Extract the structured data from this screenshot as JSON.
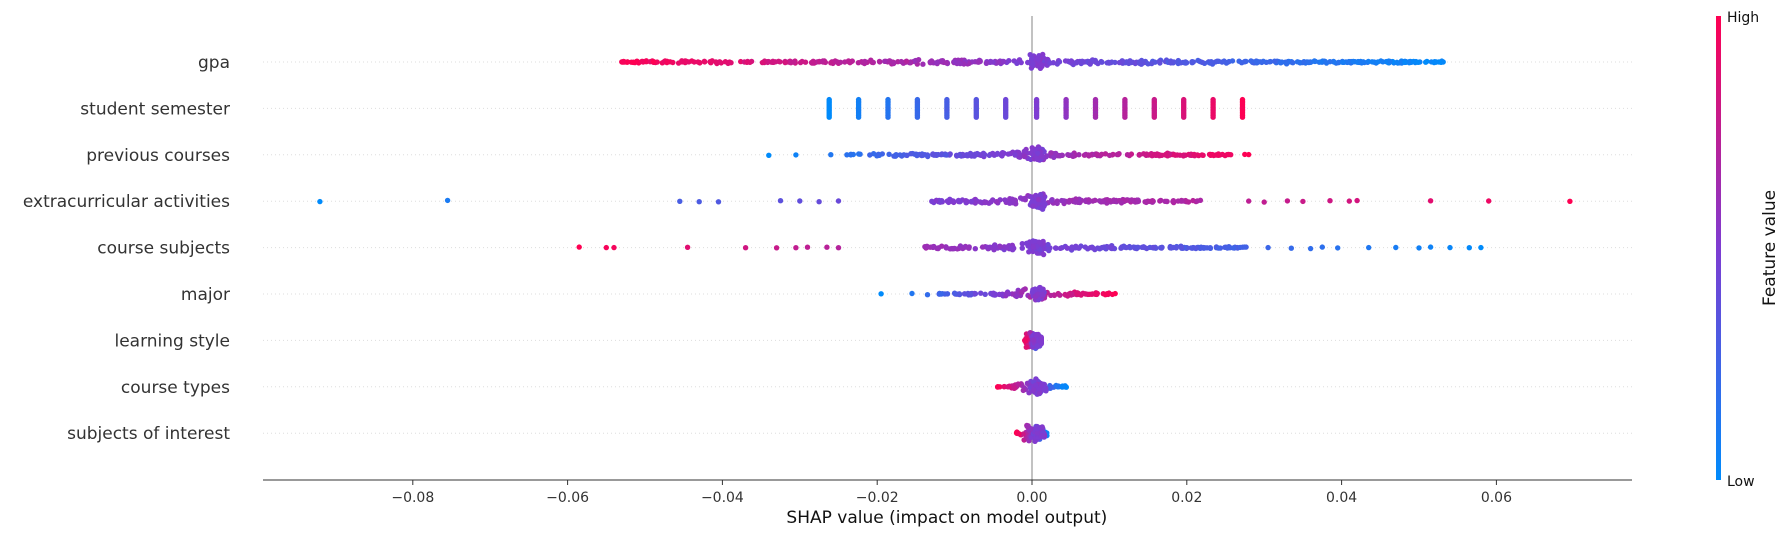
{
  "chart_data": {
    "type": "beeswarm",
    "title": "",
    "xlabel": "SHAP value (impact on model output)",
    "xlim": [
      -0.1,
      0.077
    ],
    "xticks": [
      -0.08,
      -0.06,
      -0.04,
      -0.02,
      0.0,
      0.02,
      0.04,
      0.06
    ],
    "xtick_labels": [
      "−0.08",
      "−0.06",
      "−0.04",
      "−0.02",
      "0.00",
      "0.02",
      "0.04",
      "0.06"
    ],
    "features": [
      {
        "name": "gpa",
        "min": -0.053,
        "max": 0.0535,
        "dense_min": -0.053,
        "dense_max": 0.0535,
        "outliers": [],
        "low_side": "right"
      },
      {
        "name": "student semester",
        "min": -0.0262,
        "max": 0.0275,
        "discrete": [
          -0.0262,
          -0.0224,
          -0.0186,
          -0.0148,
          -0.011,
          -0.0072,
          -0.0034,
          0.0006,
          0.0044,
          0.0082,
          0.012,
          0.0158,
          0.0196,
          0.0234,
          0.0272
        ],
        "low_side": "left"
      },
      {
        "name": "previous courses",
        "min": -0.034,
        "max": 0.028,
        "dense_min": -0.024,
        "dense_max": 0.026,
        "outliers": [
          -0.034,
          -0.0305,
          -0.026,
          0.0275,
          0.028
        ],
        "low_side": "left"
      },
      {
        "name": "extracurricular activities",
        "min": -0.092,
        "max": 0.0695,
        "dense_min": -0.013,
        "dense_max": 0.022,
        "outliers": [
          -0.092,
          -0.0755,
          -0.0455,
          -0.043,
          -0.0405,
          -0.0325,
          -0.03,
          -0.0275,
          -0.025,
          0.028,
          0.03,
          0.033,
          0.035,
          0.0385,
          0.041,
          0.042,
          0.0515,
          0.059,
          0.0695
        ],
        "low_side": "left"
      },
      {
        "name": "course subjects",
        "min": -0.0585,
        "max": 0.058,
        "dense_min": -0.014,
        "dense_max": 0.028,
        "outliers": [
          -0.0585,
          -0.055,
          -0.054,
          -0.0445,
          -0.037,
          -0.033,
          -0.0305,
          -0.029,
          -0.0265,
          -0.025,
          0.0305,
          0.0335,
          0.036,
          0.0375,
          0.0395,
          0.0435,
          0.047,
          0.05,
          0.0515,
          0.054,
          0.0565,
          0.058
        ],
        "low_side": "right"
      },
      {
        "name": "major",
        "min": -0.0195,
        "max": 0.011,
        "dense_min": -0.012,
        "dense_max": 0.011,
        "outliers": [
          -0.0195,
          -0.0155,
          -0.0135
        ],
        "low_side": "left"
      },
      {
        "name": "learning style",
        "min": -0.001,
        "max": 0.0012,
        "dense_min": -0.001,
        "dense_max": 0.0012,
        "outliers": [],
        "low_side": "right"
      },
      {
        "name": "course types",
        "min": -0.0045,
        "max": 0.0045,
        "dense_min": -0.0045,
        "dense_max": 0.0045,
        "outliers": [],
        "low_side": "right"
      },
      {
        "name": "subjects of interest",
        "min": -0.002,
        "max": 0.002,
        "dense_min": -0.002,
        "dense_max": 0.002,
        "outliers": [],
        "low_side": "right"
      }
    ],
    "colorbar": {
      "label": "Feature value",
      "high_label": "High",
      "low_label": "Low",
      "high_color": "#ff0052",
      "low_color": "#008bfb",
      "mid_color": "#7e3cd2"
    },
    "grid": false
  }
}
